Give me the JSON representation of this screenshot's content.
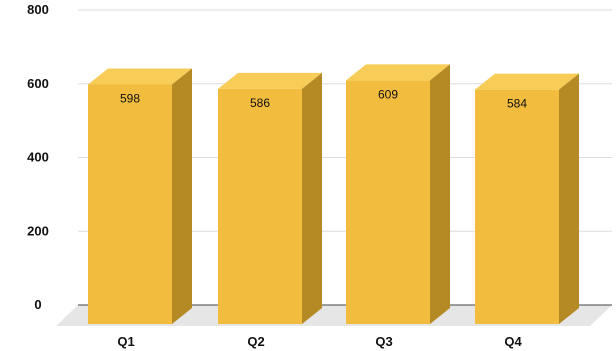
{
  "chart_data": {
    "type": "bar",
    "style": "3d-column",
    "categories": [
      "Q1",
      "Q2",
      "Q3",
      "Q4"
    ],
    "values": [
      598,
      586,
      609,
      584
    ],
    "data_labels": [
      "598",
      "586",
      "609",
      "584"
    ],
    "y_ticks": [
      "0",
      "200",
      "400",
      "600",
      "800"
    ],
    "ylim": [
      0,
      800
    ],
    "grid": true,
    "legend": "none",
    "title": "",
    "xlabel": "",
    "ylabel": ""
  },
  "colors": {
    "bar_front": "#F2BD3E",
    "bar_top": "#F7CC57",
    "bar_side": "#B58A24",
    "floor": "#E6E6E6",
    "gridline": "#DDDDDD",
    "axis": "#444444"
  }
}
